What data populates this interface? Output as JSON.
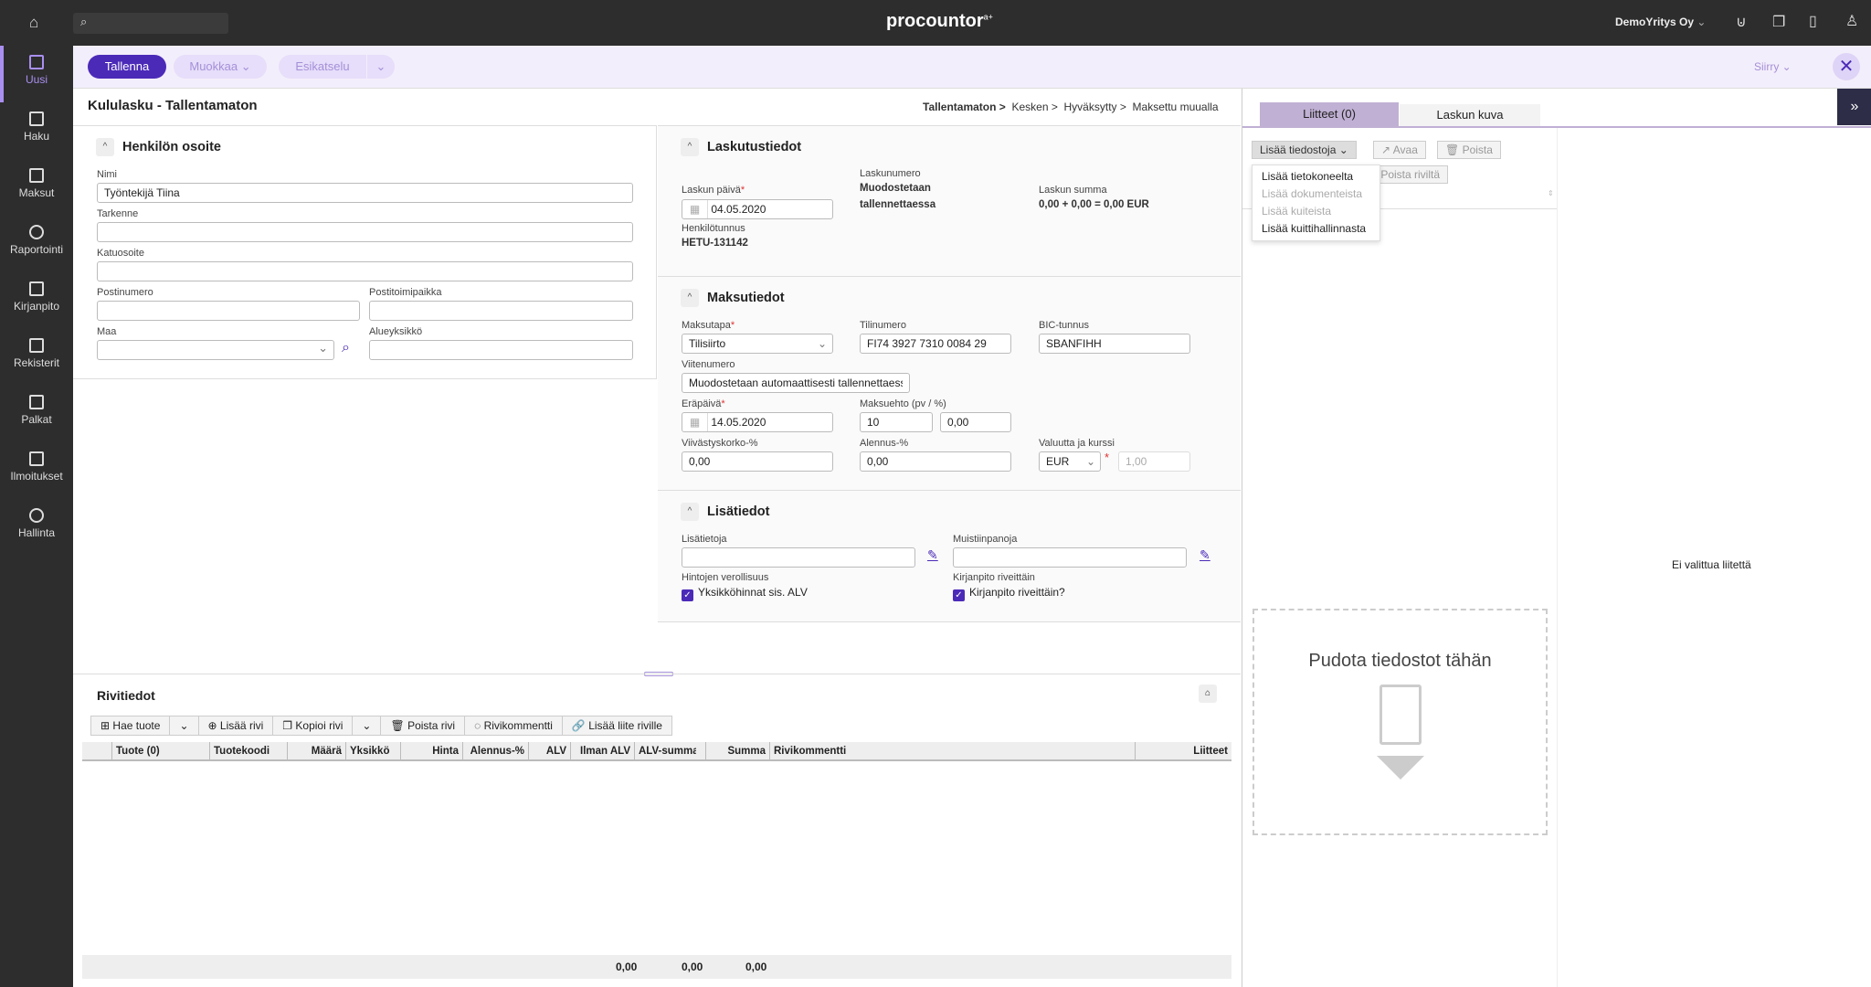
{
  "header": {
    "logo": "procountor",
    "logo_sup": "a+",
    "company": "DemoYritys Oy",
    "search_placeholder": ""
  },
  "sidebar": {
    "items": [
      {
        "label": "Uusi",
        "icon": "plus-square-icon"
      },
      {
        "label": "Haku",
        "icon": "archive-icon"
      },
      {
        "label": "Maksut",
        "icon": "card-icon"
      },
      {
        "label": "Raportointi",
        "icon": "pie-chart-icon"
      },
      {
        "label": "Kirjanpito",
        "icon": "calculator-icon"
      },
      {
        "label": "Rekisterit",
        "icon": "clipboard-icon"
      },
      {
        "label": "Palkat",
        "icon": "scroll-icon"
      },
      {
        "label": "Ilmoitukset",
        "icon": "megaphone-icon"
      },
      {
        "label": "Hallinta",
        "icon": "gear-icon"
      }
    ]
  },
  "toolbar": {
    "save": "Tallenna",
    "edit": "Muokkaa",
    "preview": "Esikatselu",
    "goto": "Siirry"
  },
  "page": {
    "title": "Kululasku - Tallentamaton",
    "status_steps": [
      "Tallentamaton >",
      "Kesken >",
      "Hyväksytty >",
      "Maksettu muualla"
    ]
  },
  "address": {
    "title": "Henkilön osoite",
    "name_label": "Nimi",
    "name_value": "Työntekijä Tiina",
    "extra_label": "Tarkenne",
    "street_label": "Katuosoite",
    "postal_label": "Postinumero",
    "city_label": "Postitoimipaikka",
    "country_label": "Maa",
    "region_label": "Alueyksikkö"
  },
  "billing": {
    "title": "Laskutustiedot",
    "date_label": "Laskun päivä",
    "date_value": "04.05.2020",
    "number_label": "Laskunumero",
    "number_value_1": "Muodostetaan",
    "number_value_2": "tallennettaessa",
    "sum_label": "Laskun summa",
    "sum_value": "0,00 + 0,00 = 0,00 EUR",
    "ssn_label": "Henkilötunnus",
    "ssn_value": "HETU-131142"
  },
  "payment": {
    "title": "Maksutiedot",
    "method_label": "Maksutapa",
    "method_value": "Tilisiirto",
    "account_label": "Tilinumero",
    "account_value": "FI74 3927 7310 0084 29",
    "bic_label": "BIC-tunnus",
    "bic_value": "SBANFIHH",
    "ref_label": "Viitenumero",
    "ref_value": "Muodostetaan automaattisesti tallennettaessa",
    "due_label": "Eräpäivä",
    "due_value": "14.05.2020",
    "terms_label": "Maksuehto (pv / %)",
    "terms_days": "10",
    "terms_pct": "0,00",
    "interest_label": "Viivästyskorko-%",
    "interest_value": "0,00",
    "discount_label": "Alennus-%",
    "discount_value": "0,00",
    "currency_label": "Valuutta ja kurssi",
    "currency_value": "EUR",
    "rate_value": "1,00"
  },
  "extra": {
    "title": "Lisätiedot",
    "info_label": "Lisätietoja",
    "notes_label": "Muistiinpanoja",
    "tax_label": "Hintojen verollisuus",
    "tax_check": "Yksikköhinnat sis. ALV",
    "tax_checked": true,
    "rows_label": "Kirjanpito riveittäin",
    "rows_check": "Kirjanpito riveittäin?",
    "rows_checked": true
  },
  "rows": {
    "title": "Rivitiedot",
    "buttons": [
      "Hae tuote",
      "Lisää rivi",
      "Kopioi rivi",
      "Poista rivi",
      "Rivikommentti",
      "Lisää liite riville"
    ],
    "columns": [
      "Tuote (0)",
      "Tuotekoodi",
      "Määrä",
      "Yksikkö",
      "Hinta",
      "Alennus-%",
      "ALV",
      "Ilman ALV",
      "ALV-summa",
      "Summa",
      "Rivikommentti",
      "Liitteet"
    ],
    "totals": [
      "0,00",
      "0,00",
      "0,00"
    ]
  },
  "attachments": {
    "tabs": [
      "Liitteet (0)",
      "Laskun kuva"
    ],
    "add_files": "Lisää tiedostoja",
    "open": "Avaa",
    "delete": "Poista",
    "remove_row": "Poista riviltä",
    "menu": [
      {
        "label": "Lisää tietokoneelta",
        "enabled": true
      },
      {
        "label": "Lisää dokumenteista",
        "enabled": false
      },
      {
        "label": "Lisää kuiteista",
        "enabled": false
      },
      {
        "label": "Lisää kuittihallinnasta",
        "enabled": true
      }
    ],
    "drop_text": "Pudota tiedostot tähän",
    "no_selection": "Ei valittua liitettä"
  },
  "colors": {
    "accent": "#4b2ab8",
    "toolbar_bg": "#f3eefb",
    "topbar_bg": "#2d2d2d",
    "active_tab": "#c0b0d4"
  }
}
